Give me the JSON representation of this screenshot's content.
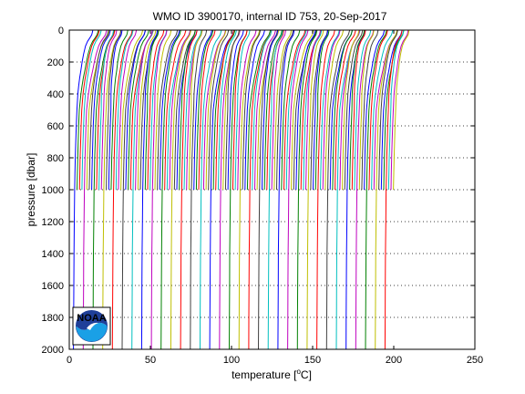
{
  "chart_data": {
    "type": "line",
    "title": "WMO ID 3900170, internal ID 753, 20-Sep-2017",
    "xlabel_prefix": "temperature [",
    "xlabel_unit": "o",
    "xlabel_suffix": "C]",
    "ylabel": "pressure [dbar]",
    "xlim": [
      0,
      250
    ],
    "ylim": [
      0,
      2000
    ],
    "y_reversed": true,
    "xticks": [
      0,
      50,
      100,
      150,
      200,
      250
    ],
    "yticks": [
      0,
      200,
      400,
      600,
      800,
      1000,
      1200,
      1400,
      1600,
      1800,
      2000
    ],
    "grid": "horizontal dotted",
    "profile_count": 132,
    "profile_offset_step": 1.5,
    "deep_profile_every": 4,
    "shallow_pressure_limit": 1000,
    "profile_shape": {
      "pressure": [
        0,
        10,
        30,
        50,
        70,
        100,
        150,
        200,
        250,
        300,
        350,
        400,
        500,
        600,
        700,
        800,
        900,
        1000,
        1200,
        1400,
        1600,
        1800,
        2000
      ],
      "temp": [
        14.5,
        14.3,
        13.8,
        12.6,
        11.3,
        10.0,
        8.8,
        7.9,
        7.2,
        6.4,
        5.8,
        5.3,
        4.7,
        4.3,
        4.0,
        3.7,
        3.5,
        3.3,
        3.1,
        2.9,
        2.8,
        2.7,
        2.6
      ]
    },
    "colors": [
      "#0000ff",
      "#008000",
      "#ff0000",
      "#00bfbf",
      "#bf00bf",
      "#bfbf00",
      "#404040"
    ],
    "logo_text": "NOAA"
  }
}
